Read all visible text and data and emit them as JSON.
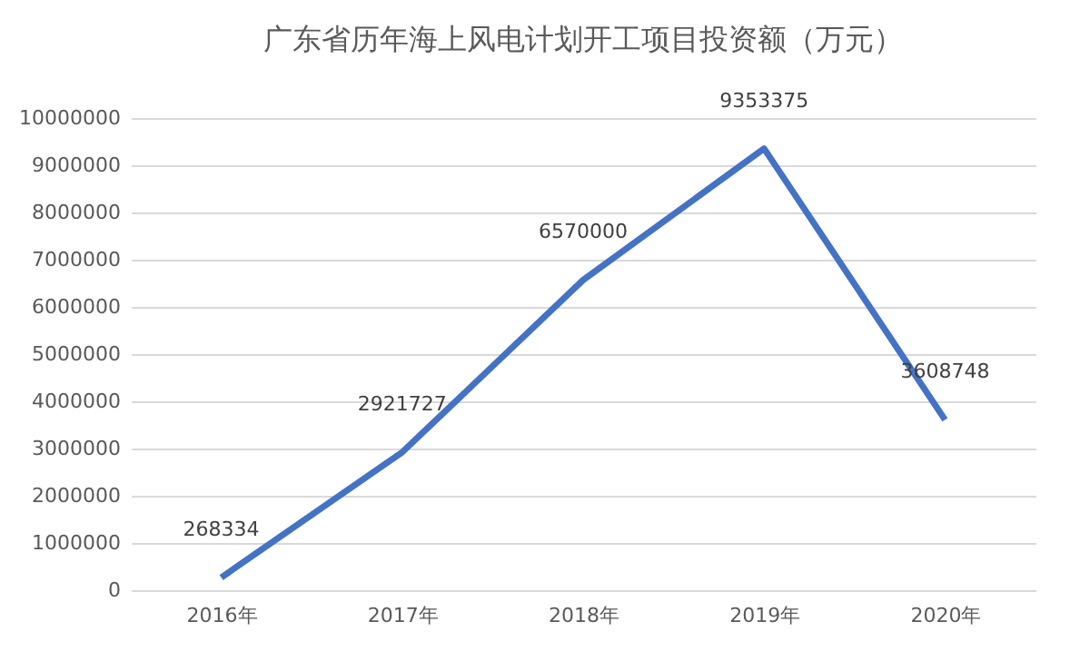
{
  "chart_data": {
    "type": "line",
    "title": "广东省历年海上风电计划开工项目投资额（万元）",
    "categories": [
      "2016年",
      "2017年",
      "2018年",
      "2019年",
      "2020年"
    ],
    "series": [
      {
        "color": "#4472c4",
        "values": [
          268334,
          2921727,
          6570000,
          9353375,
          3608748
        ]
      }
    ],
    "ylim": [
      0,
      10000000
    ],
    "yticks": [
      0,
      1000000,
      2000000,
      3000000,
      4000000,
      5000000,
      6000000,
      7000000,
      8000000,
      9000000,
      10000000
    ],
    "grid": "y",
    "data_labels": true,
    "legend": false,
    "marker": "none",
    "line_style": "solid"
  }
}
